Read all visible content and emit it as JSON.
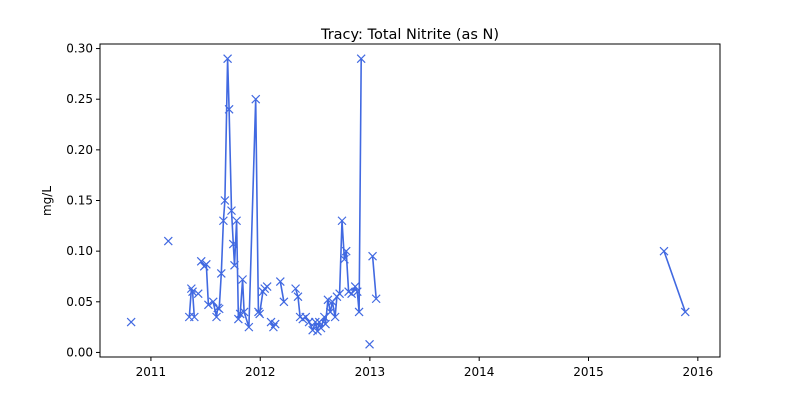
{
  "chart_data": {
    "type": "line",
    "title": "Tracy: Total Nitrite (as N)",
    "xlabel": "",
    "ylabel": "mg/L",
    "xlim": [
      "2010-07-15",
      "2016-03-15"
    ],
    "ylim": [
      -0.0045,
      0.3045
    ],
    "x_ticks": [
      "2011",
      "2012",
      "2013",
      "2014",
      "2015",
      "2016"
    ],
    "y_ticks": [
      "0.00",
      "0.05",
      "0.10",
      "0.15",
      "0.20",
      "0.25",
      "0.30"
    ],
    "grid": false,
    "legend": "none",
    "series": [
      {
        "color": "#4169E1",
        "marker": "x",
        "segments": [
          [
            [
              "2010-10-27",
              0.03
            ]
          ],
          [
            [
              "2011-02-28",
              0.11
            ]
          ],
          [
            [
              "2011-05-09",
              0.035
            ],
            [
              "2011-05-16",
              0.063
            ],
            [
              "2011-05-20",
              0.06
            ],
            [
              "2011-05-26",
              0.035
            ]
          ],
          [
            [
              "2011-06-08",
              0.058
            ]
          ],
          [
            [
              "2011-06-18",
              0.09
            ],
            [
              "2011-06-28",
              0.085
            ],
            [
              "2011-07-05",
              0.087
            ],
            [
              "2011-07-12",
              0.047
            ]
          ],
          [
            [
              "2011-07-28",
              0.05
            ],
            [
              "2011-08-08",
              0.035
            ],
            [
              "2011-08-12",
              0.044
            ],
            [
              "2011-08-17",
              0.043
            ],
            [
              "2011-08-24",
              0.078
            ],
            [
              "2011-08-31",
              0.13
            ],
            [
              "2011-09-05",
              0.15
            ],
            [
              "2011-09-14",
              0.29
            ],
            [
              "2011-09-19",
              0.24
            ],
            [
              "2011-09-27",
              0.14
            ],
            [
              "2011-10-03",
              0.107
            ],
            [
              "2011-10-07",
              0.086
            ],
            [
              "2011-10-14",
              0.13
            ],
            [
              "2011-10-20",
              0.033
            ],
            [
              "2011-10-26",
              0.038
            ],
            [
              "2011-11-03",
              0.072
            ],
            [
              "2011-11-08",
              0.04
            ],
            [
              "2011-11-24",
              0.025
            ],
            [
              "2011-12-17",
              0.25
            ],
            [
              "2011-12-26",
              0.04
            ],
            [
              "2011-12-30",
              0.038
            ],
            [
              "2012-01-10",
              0.06
            ],
            [
              "2012-01-16",
              0.063
            ],
            [
              "2012-01-24",
              0.065
            ]
          ],
          [
            [
              "2012-02-06",
              0.03
            ],
            [
              "2012-02-14",
              0.025
            ],
            [
              "2012-02-20",
              0.028
            ]
          ],
          [
            [
              "2012-03-08",
              0.07
            ],
            [
              "2012-03-20",
              0.05
            ]
          ],
          [
            [
              "2012-04-28",
              0.063
            ],
            [
              "2012-05-06",
              0.055
            ],
            [
              "2012-05-13",
              0.035
            ],
            [
              "2012-05-22",
              0.033
            ],
            [
              "2012-06-01",
              0.035
            ],
            [
              "2012-06-12",
              0.03
            ],
            [
              "2012-06-24",
              0.022
            ],
            [
              "2012-07-03",
              0.03
            ],
            [
              "2012-07-10",
              0.021
            ],
            [
              "2012-07-16",
              0.03
            ],
            [
              "2012-07-22",
              0.024
            ],
            [
              "2012-08-02",
              0.035
            ],
            [
              "2012-08-06",
              0.028
            ],
            [
              "2012-08-14",
              0.052
            ],
            [
              "2012-08-22",
              0.04
            ],
            [
              "2012-08-29",
              0.05
            ],
            [
              "2012-09-07",
              0.035
            ],
            [
              "2012-09-13",
              0.055
            ],
            [
              "2012-09-22",
              0.058
            ],
            [
              "2012-09-30",
              0.13
            ],
            [
              "2012-10-08",
              0.092
            ],
            [
              "2012-10-14",
              0.1
            ],
            [
              "2012-10-22",
              0.06
            ],
            [
              "2012-11-01",
              0.058
            ],
            [
              "2012-11-13",
              0.065
            ],
            [
              "2012-11-20",
              0.06
            ],
            [
              "2012-11-26",
              0.04
            ],
            [
              "2012-12-03",
              0.29
            ]
          ],
          [
            [
              "2012-12-31",
              0.008
            ]
          ],
          [
            [
              "2013-01-10",
              0.095
            ],
            [
              "2013-01-22",
              0.053
            ]
          ],
          [
            [
              "2015-09-10",
              0.1
            ],
            [
              "2015-11-20",
              0.04
            ]
          ]
        ]
      }
    ]
  }
}
